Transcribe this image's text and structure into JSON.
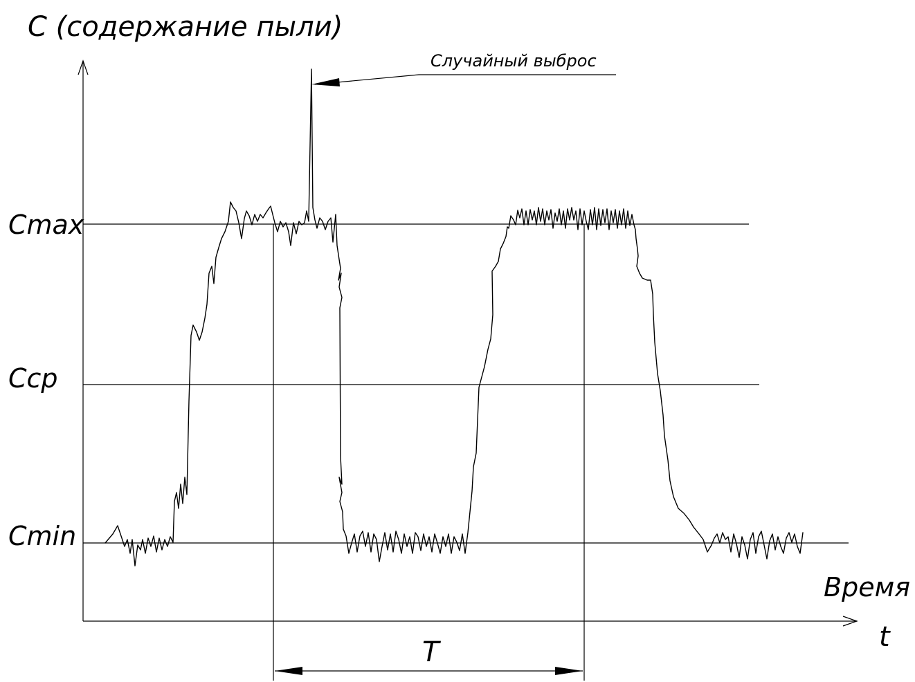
{
  "diagram": {
    "y_axis_label": "С (содержание пыли)",
    "x_axis_label": "Время",
    "x_axis_symbol": "t",
    "levels": {
      "max": "Cmax",
      "avg": "Cср",
      "min": "Cmin"
    },
    "period_label": "T",
    "annotation": "Случайный выброс"
  }
}
